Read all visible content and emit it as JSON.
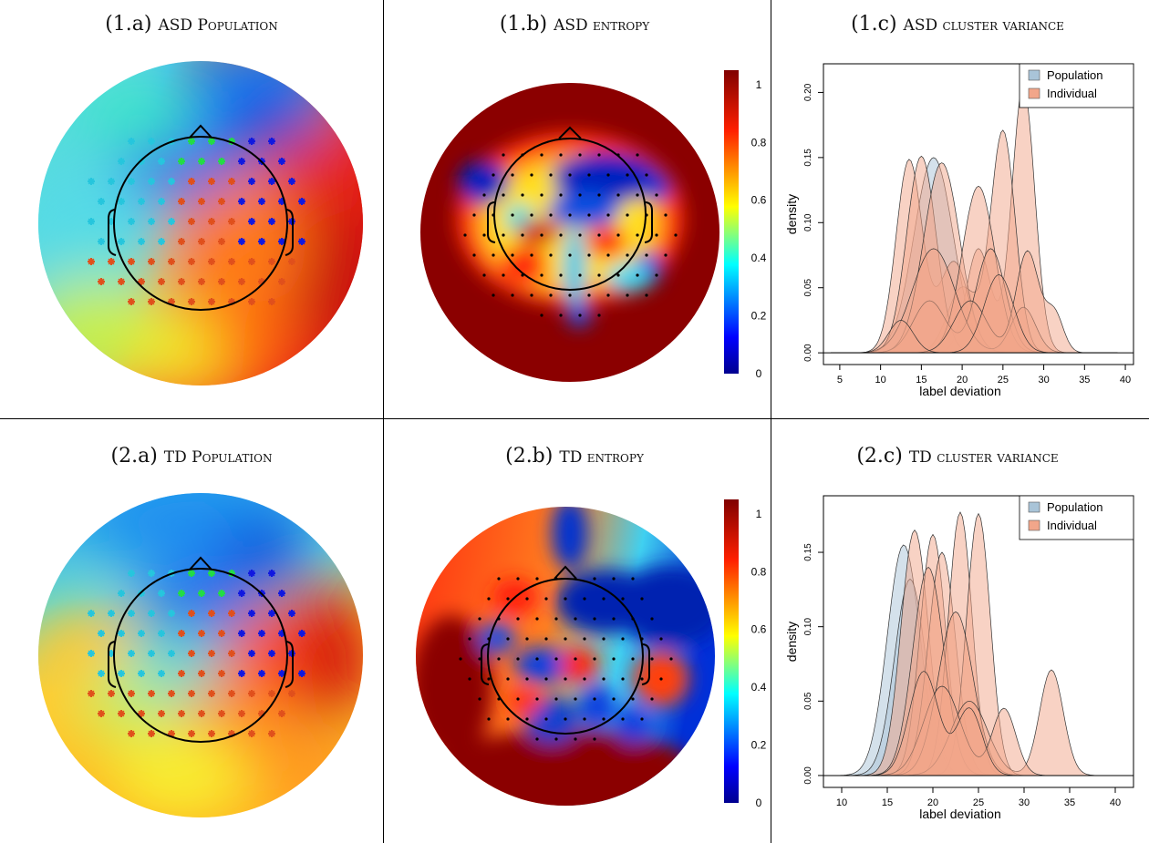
{
  "panels": {
    "p1a": {
      "prefix": "(1.a)",
      "label": "ASD Population"
    },
    "p1b": {
      "prefix": "(1.b)",
      "label": "ASD entropy"
    },
    "p1c": {
      "prefix": "(1.c)",
      "label": "ASD cluster variance"
    },
    "p2a": {
      "prefix": "(2.a)",
      "label": "TD Population"
    },
    "p2b": {
      "prefix": "(2.b)",
      "label": "TD entropy"
    },
    "p2c": {
      "prefix": "(2.c)",
      "label": "TD cluster variance"
    }
  },
  "colorbar": {
    "ticks": [
      "0",
      "0.2",
      "0.4",
      "0.6",
      "0.8",
      "1"
    ],
    "tick_values": [
      0,
      0.2,
      0.4,
      0.6,
      0.8,
      1.0
    ],
    "range": [
      0,
      1.05
    ]
  },
  "chart_data": [
    {
      "id": "asd-density",
      "type": "area",
      "xlabel": "label deviation",
      "ylabel": "density",
      "xlim": [
        3,
        41
      ],
      "ylim": [
        -0.009,
        0.222
      ],
      "xticks": [
        "5",
        "10",
        "15",
        "20",
        "25",
        "30",
        "35",
        "40"
      ],
      "xtick_values": [
        5,
        10,
        15,
        20,
        25,
        30,
        35,
        40
      ],
      "yticks": [
        "0.00",
        "0.05",
        "0.10",
        "0.15",
        "0.20"
      ],
      "ytick_values": [
        0,
        0.05,
        0.1,
        0.15,
        0.2
      ],
      "legend": [
        {
          "name": "Population",
          "color": "#a9c4d8"
        },
        {
          "name": "Individual",
          "color": "#f2a68a"
        }
      ],
      "legend_position": "top-right",
      "series": [
        {
          "name": "Population",
          "group": "Population",
          "peaks": [
            [
              16.5,
              0.15,
              2.4
            ]
          ]
        },
        {
          "name": "Individual",
          "group": "Individual",
          "peaks": [
            [
              27.5,
              0.205,
              1.4
            ],
            [
              22,
              0.08,
              1.5
            ]
          ]
        },
        {
          "name": "Individual",
          "group": "Individual",
          "peaks": [
            [
              25,
              0.17,
              1.5
            ],
            [
              20,
              0.05,
              1.8
            ]
          ]
        },
        {
          "name": "Individual",
          "group": "Individual",
          "peaks": [
            [
              13.5,
              0.148,
              1.6
            ],
            [
              19,
              0.07,
              1.8
            ]
          ]
        },
        {
          "name": "Individual",
          "group": "Individual",
          "peaks": [
            [
              15,
              0.151,
              1.8
            ]
          ]
        },
        {
          "name": "Individual",
          "group": "Individual",
          "peaks": [
            [
              17.5,
              0.146,
              2.2
            ]
          ]
        },
        {
          "name": "Individual",
          "group": "Individual",
          "peaks": [
            [
              22,
              0.128,
              2.0
            ]
          ]
        },
        {
          "name": "Individual",
          "group": "Individual",
          "peaks": [
            [
              23.5,
              0.08,
              1.8
            ],
            [
              16,
              0.04,
              2.0
            ]
          ]
        },
        {
          "name": "Individual",
          "group": "Individual",
          "peaks": [
            [
              16.5,
              0.08,
              2.6
            ],
            [
              27.5,
              0.035,
              1.5
            ]
          ]
        },
        {
          "name": "Individual",
          "group": "Individual",
          "peaks": [
            [
              28,
              0.078,
              1.4
            ],
            [
              31.3,
              0.03,
              1.1
            ],
            [
              21,
              0.04,
              2.0
            ]
          ]
        },
        {
          "name": "Individual",
          "group": "Individual",
          "peaks": [
            [
              24.5,
              0.06,
              1.8
            ],
            [
              12.5,
              0.025,
              1.5
            ]
          ]
        }
      ]
    },
    {
      "id": "td-density",
      "type": "area",
      "xlabel": "label deviation",
      "ylabel": "density",
      "xlim": [
        8,
        42
      ],
      "ylim": [
        -0.008,
        0.188
      ],
      "xticks": [
        "10",
        "15",
        "20",
        "25",
        "30",
        "35",
        "40"
      ],
      "xtick_values": [
        10,
        15,
        20,
        25,
        30,
        35,
        40
      ],
      "yticks": [
        "0.00",
        "0.05",
        "0.10",
        "0.15"
      ],
      "ytick_values": [
        0,
        0.05,
        0.1,
        0.15
      ],
      "legend": [
        {
          "name": "Population",
          "color": "#a9c4d8"
        },
        {
          "name": "Individual",
          "color": "#f2a68a"
        }
      ],
      "legend_position": "top-right",
      "series": [
        {
          "name": "Population",
          "group": "Population",
          "peaks": [
            [
              16.8,
              0.155,
              1.8
            ]
          ]
        },
        {
          "name": "Population",
          "group": "Population",
          "peaks": [
            [
              17.5,
              0.132,
              1.7
            ]
          ]
        },
        {
          "name": "Individual",
          "group": "Individual",
          "peaks": [
            [
              18,
              0.165,
              1.5
            ]
          ]
        },
        {
          "name": "Individual",
          "group": "Individual",
          "peaks": [
            [
              20,
              0.162,
              1.4
            ]
          ]
        },
        {
          "name": "Individual",
          "group": "Individual",
          "peaks": [
            [
              21,
              0.15,
              1.5
            ]
          ]
        },
        {
          "name": "Individual",
          "group": "Individual",
          "peaks": [
            [
              23,
              0.177,
              1.3
            ]
          ]
        },
        {
          "name": "Individual",
          "group": "Individual",
          "peaks": [
            [
              25,
              0.176,
              1.3
            ]
          ]
        },
        {
          "name": "Individual",
          "group": "Individual",
          "peaks": [
            [
              19.5,
              0.14,
              1.7
            ]
          ]
        },
        {
          "name": "Individual",
          "group": "Individual",
          "peaks": [
            [
              22.5,
              0.11,
              1.9
            ]
          ]
        },
        {
          "name": "Individual",
          "group": "Individual",
          "peaks": [
            [
              33,
              0.071,
              1.3
            ],
            [
              24,
              0.05,
              2.0
            ]
          ]
        },
        {
          "name": "Individual",
          "group": "Individual",
          "peaks": [
            [
              27.8,
              0.045,
              1.3
            ],
            [
              21,
              0.06,
              2.0
            ]
          ]
        },
        {
          "name": "Individual",
          "group": "Individual",
          "peaks": [
            [
              24,
              0.045,
              1.4
            ],
            [
              19,
              0.07,
              1.6
            ]
          ]
        }
      ]
    }
  ]
}
